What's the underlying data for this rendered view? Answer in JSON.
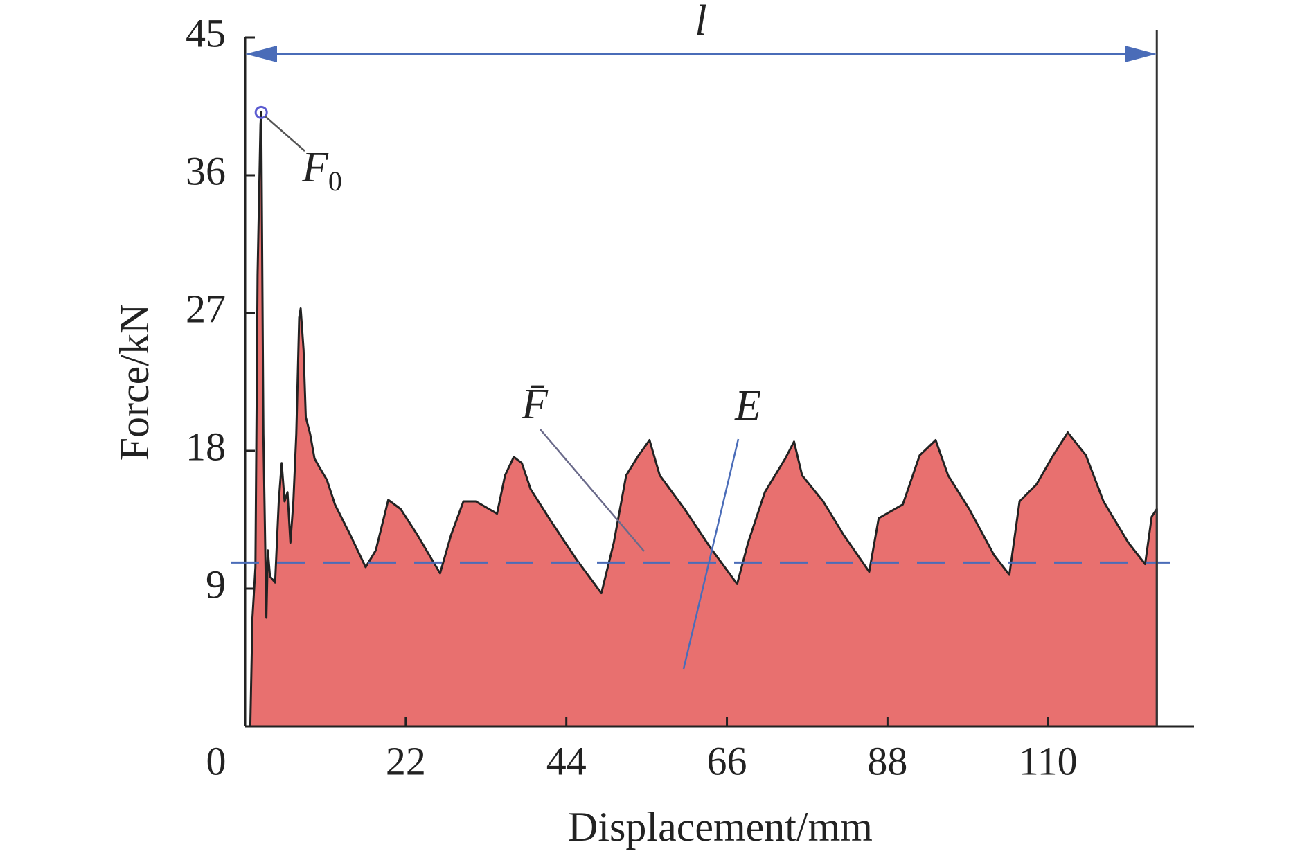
{
  "chart_data": {
    "type": "area",
    "x_label": "Displacement/mm",
    "y_label": "Force/kN",
    "x": [
      0.7,
      1.0,
      1.4,
      1.7,
      2.1,
      2.2,
      2.5,
      2.9,
      3.1,
      3.4,
      4.1,
      4.6,
      5.0,
      5.4,
      5.8,
      6.2,
      6.6,
      7.0,
      7.4,
      7.6,
      8.0,
      8.3,
      8.9,
      9.5,
      10.2,
      11.2,
      12.3,
      14.4,
      16.5,
      17.9,
      19.6,
      21.3,
      23.6,
      26.7,
      28.2,
      29.9,
      31.6,
      34.5,
      35.6,
      36.8,
      37.9,
      39.1,
      41.9,
      45.4,
      48.8,
      50.5,
      52.2,
      53.9,
      55.4,
      56.8,
      60.2,
      63.7,
      67.4,
      68.9,
      71.2,
      74.0,
      75.2,
      76.3,
      79.2,
      82.0,
      85.5,
      86.8,
      90.1,
      92.4,
      94.6,
      96.3,
      99.2,
      102.6,
      104.7,
      106.1,
      108.4,
      110.7,
      112.7,
      115.2,
      117.6,
      121.0,
      123.3,
      124.2,
      124.9,
      124.9
    ],
    "values": [
      0,
      7.1,
      10.4,
      29.5,
      39.3,
      40.1,
      19.1,
      7.1,
      11.5,
      9.8,
      9.4,
      14.7,
      17.2,
      14.7,
      15.3,
      12.0,
      14.7,
      19.1,
      26.7,
      27.3,
      24.6,
      20.2,
      19.1,
      17.5,
      16.9,
      16.1,
      14.5,
      12.5,
      10.4,
      11.5,
      14.8,
      14.2,
      12.5,
      10.0,
      12.5,
      14.7,
      14.7,
      13.9,
      16.4,
      17.6,
      17.2,
      15.5,
      13.4,
      10.9,
      8.7,
      12.0,
      16.4,
      17.7,
      18.7,
      16.4,
      14.2,
      11.7,
      9.3,
      12.0,
      15.3,
      17.5,
      18.6,
      16.4,
      14.7,
      12.5,
      10.1,
      13.6,
      14.5,
      17.7,
      18.7,
      16.4,
      14.2,
      11.2,
      9.9,
      14.7,
      15.8,
      17.7,
      19.2,
      17.7,
      14.7,
      12.0,
      10.6,
      13.7,
      14.2,
      0
    ],
    "color": "#e8706f",
    "line_color": "#222222",
    "xlim": [
      0,
      130
    ],
    "ylim": [
      0,
      45
    ],
    "xticks": [
      0,
      22,
      44,
      66,
      88,
      110
    ],
    "yticks": [
      9,
      18,
      27,
      36,
      45
    ],
    "mean_line": {
      "value": 10.7,
      "label": "F̄",
      "color": "#4a6cb8"
    },
    "peak": {
      "x": 2.2,
      "y": 40.1,
      "label": "F",
      "subscript": "0"
    },
    "length": {
      "label": "l",
      "x_start": 0,
      "x_end": 124.9
    },
    "energy": {
      "label": "E"
    }
  }
}
